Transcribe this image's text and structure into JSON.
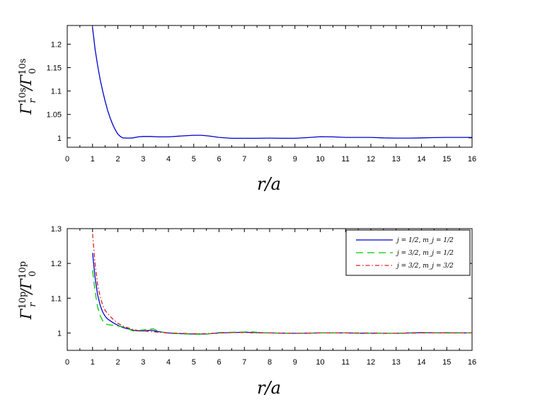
{
  "chart_data": [
    {
      "type": "line",
      "title": "",
      "xlabel": "r/a",
      "ylabel": "Γ_r^{10s}/Γ_0^{10s}",
      "xlim": [
        0,
        16
      ],
      "ylim": [
        0.98,
        1.24
      ],
      "xticks": [
        0,
        1,
        2,
        3,
        4,
        5,
        6,
        7,
        8,
        9,
        10,
        11,
        12,
        13,
        14,
        15,
        16
      ],
      "yticks": [
        1,
        1.05,
        1.1,
        1.15,
        1.2
      ],
      "ytick_labels": [
        "1",
        "1.05",
        "1.1",
        "1.15",
        "1.2"
      ],
      "grid": false,
      "series": [
        {
          "name": "",
          "color": "#0000cc",
          "dash": "solid",
          "x": [
            1.0,
            1.1,
            1.2,
            1.3,
            1.4,
            1.5,
            1.6,
            1.7,
            1.8,
            1.9,
            2.0,
            2.1,
            2.2,
            2.4,
            2.6,
            2.8,
            3.0,
            3.3,
            3.6,
            4.0,
            4.5,
            5.0,
            5.3,
            5.6,
            6.0,
            6.5,
            7.0,
            7.5,
            8.0,
            8.5,
            9.0,
            9.5,
            10.0,
            10.5,
            11.0,
            11.5,
            12.0,
            12.5,
            13.0,
            13.5,
            14.0,
            14.5,
            15.0,
            15.5,
            16.0
          ],
          "y": [
            1.235,
            1.19,
            1.155,
            1.125,
            1.1,
            1.078,
            1.058,
            1.042,
            1.028,
            1.017,
            1.008,
            1.003,
            1.0,
            0.9995,
            1.0,
            1.002,
            1.003,
            1.003,
            1.002,
            1.002,
            1.004,
            1.0055,
            1.0055,
            1.004,
            1.001,
            0.999,
            0.999,
            0.999,
            0.9995,
            0.999,
            0.999,
            1.0005,
            1.0025,
            1.002,
            1.001,
            1.001,
            1.001,
            1.0,
            0.9995,
            0.9995,
            1.0,
            1.0005,
            1.001,
            1.001,
            1.001
          ]
        }
      ]
    },
    {
      "type": "line",
      "title": "",
      "xlabel": "r/a",
      "ylabel": "Γ_r^{10p}/Γ_0^{10p}",
      "xlim": [
        0,
        16
      ],
      "ylim": [
        0.95,
        1.3
      ],
      "xticks": [
        0,
        1,
        2,
        3,
        4,
        5,
        6,
        7,
        8,
        9,
        10,
        11,
        12,
        13,
        14,
        15,
        16
      ],
      "yticks": [
        1,
        1.1,
        1.2,
        1.3
      ],
      "ytick_labels": [
        "1",
        "1.1",
        "1.2",
        "1.3"
      ],
      "grid": false,
      "legend": "top-right",
      "series": [
        {
          "name": "j = 1/2, m_j = 1/2",
          "color": "#0000cc",
          "dash": "solid",
          "x": [
            1.0,
            1.1,
            1.2,
            1.3,
            1.4,
            1.5,
            1.6,
            1.8,
            2.0,
            2.2,
            2.4,
            2.6,
            2.8,
            3.0,
            3.3,
            3.6,
            4.0,
            4.5,
            5.0,
            5.5,
            6.0,
            6.5,
            7.0,
            7.5,
            8.0,
            9.0,
            10.0,
            11.0,
            12.0,
            13.0,
            14.0,
            15.0,
            16.0
          ],
          "y": [
            1.23,
            1.16,
            1.11,
            1.08,
            1.06,
            1.048,
            1.04,
            1.03,
            1.022,
            1.016,
            1.012,
            1.008,
            1.006,
            1.006,
            1.008,
            1.004,
            1.0,
            0.998,
            0.997,
            0.997,
            1.0,
            1.001,
            1.002,
            1.001,
            1.0,
            0.999,
            1.0,
            1.0,
            0.999,
            0.999,
            1.001,
            1.0,
            1.0
          ]
        },
        {
          "name": "j = 3/2, m_j = 1/2",
          "color": "#00cc00",
          "dash": "long-dash",
          "x": [
            1.0,
            1.1,
            1.2,
            1.3,
            1.4,
            1.5,
            1.6,
            1.8,
            2.0,
            2.2,
            2.4,
            2.6,
            2.8,
            3.0,
            3.2,
            3.4,
            3.6,
            4.0,
            4.5,
            5.0,
            5.5,
            6.0,
            6.5,
            7.0,
            7.2,
            7.5,
            8.0,
            9.0,
            10.0,
            11.0,
            12.0,
            13.0,
            14.0,
            15.0,
            16.0
          ],
          "y": [
            1.18,
            1.12,
            1.075,
            1.05,
            1.035,
            1.027,
            1.024,
            1.022,
            1.02,
            1.018,
            1.012,
            1.006,
            1.007,
            1.009,
            1.011,
            1.012,
            1.005,
            0.999,
            0.998,
            0.996,
            0.997,
            1.001,
            1.002,
            1.003,
            1.004,
            1.002,
            1.0,
            0.999,
            1.0,
            1.0,
            0.999,
            0.999,
            1.0,
            1.001,
            1.0
          ]
        },
        {
          "name": "j = 3/2, m_j = 3/2",
          "color": "#e02020",
          "dash": "dash-dot",
          "x": [
            1.0,
            1.1,
            1.2,
            1.3,
            1.4,
            1.5,
            1.6,
            1.8,
            2.0,
            2.2,
            2.4,
            2.6,
            2.8,
            3.0,
            3.3,
            3.6,
            4.0,
            4.5,
            5.0,
            5.5,
            6.0,
            6.5,
            7.0,
            7.5,
            8.0,
            9.0,
            10.0,
            11.0,
            12.0,
            13.0,
            14.0,
            15.0,
            16.0
          ],
          "y": [
            1.285,
            1.2,
            1.14,
            1.105,
            1.08,
            1.065,
            1.055,
            1.04,
            1.028,
            1.02,
            1.015,
            1.01,
            1.007,
            1.006,
            1.004,
            1.002,
            1.0,
            0.999,
            0.998,
            0.998,
            1.0,
            1.001,
            1.001,
            1.0,
            1.0,
            0.999,
            1.0,
            1.0,
            1.0,
            0.999,
            1.0,
            1.0,
            1.0
          ]
        }
      ]
    }
  ]
}
